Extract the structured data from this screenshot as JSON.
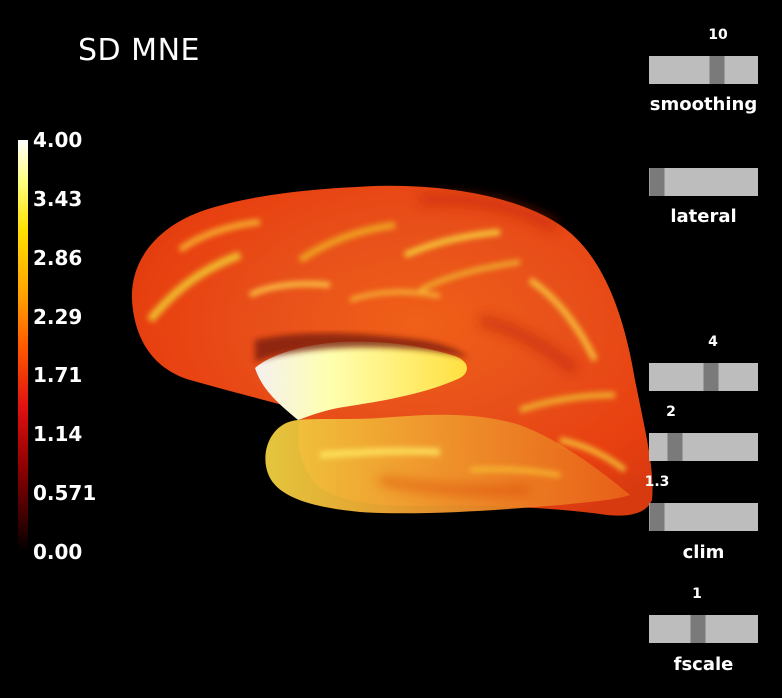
{
  "title": "SD MNE",
  "colorbar": {
    "ticks": [
      "4.00",
      "3.43",
      "2.86",
      "2.29",
      "1.71",
      "1.14",
      "0.571",
      "0.00"
    ],
    "colormap": "hot"
  },
  "sliders": [
    {
      "id": "smoothing",
      "label": "smoothing",
      "value_text": "10",
      "level": 0.64
    },
    {
      "id": "lateral",
      "label": "lateral",
      "value_text": "",
      "level": 0.0
    },
    {
      "id": "clim_high",
      "label": "",
      "value_text": "4",
      "level": 0.58
    },
    {
      "id": "clim_mid",
      "label": "",
      "value_text": "2",
      "level": 0.2
    },
    {
      "id": "clim_low",
      "label": "clim",
      "value_text": "1.3",
      "level": 0.0
    },
    {
      "id": "fscale",
      "label": "fscale",
      "value_text": "1",
      "level": 0.44
    }
  ],
  "colors": {
    "background": "#000000",
    "track": "#bdbdbd",
    "handle": "#7a7a7a"
  }
}
